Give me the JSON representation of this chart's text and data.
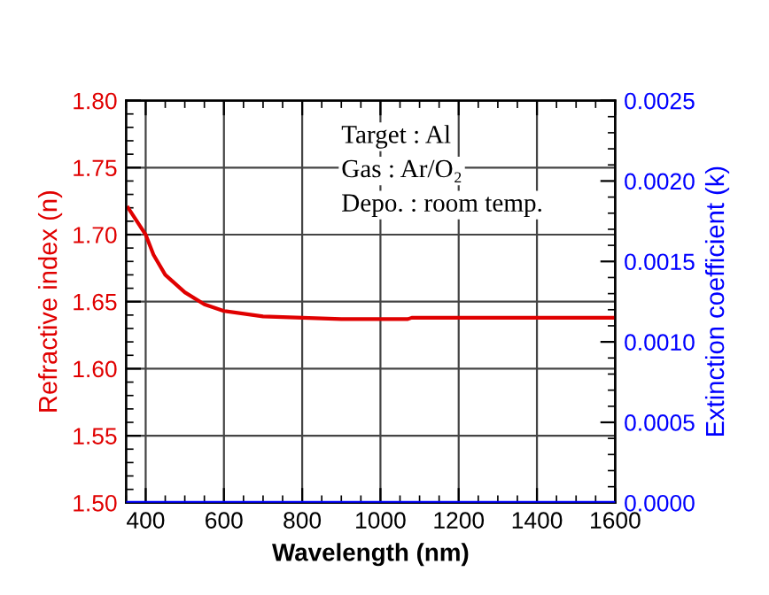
{
  "chart_data": {
    "type": "line",
    "xlabel": "Wavelength (nm)",
    "ylabel": "Refractive index (n)",
    "y2label": "Extinction coefficient (k)",
    "series": [
      {
        "color": "#e00000",
        "x": [
          355,
          400,
          420,
          450,
          500,
          550,
          600,
          700,
          800,
          900,
          1070,
          1080,
          1600
        ],
        "values": [
          1.72,
          1.7,
          1.685,
          1.67,
          1.657,
          1.648,
          1.643,
          1.639,
          1.638,
          1.637,
          1.637,
          1.638,
          1.638
        ]
      },
      {
        "color": "#0000ff",
        "axis": "y2",
        "x": [
          350,
          1600
        ],
        "values": [
          0,
          0
        ]
      }
    ],
    "xlim": [
      350,
      1600
    ],
    "xticks": [
      400,
      600,
      800,
      1000,
      1200,
      1400,
      1600
    ],
    "ylim": [
      1.5,
      1.8
    ],
    "yticks": [
      {
        "value": 1.5,
        "label": "1.50"
      },
      {
        "value": 1.55,
        "label": "1.55"
      },
      {
        "value": 1.6,
        "label": "1.60"
      },
      {
        "value": 1.65,
        "label": "1.65"
      },
      {
        "value": 1.7,
        "label": "1.70"
      },
      {
        "value": 1.75,
        "label": "1.75"
      },
      {
        "value": 1.8,
        "label": "1.80"
      }
    ],
    "y2lim": [
      0,
      0.0025
    ],
    "y2ticks": [
      {
        "value": 0,
        "label": "0.0000"
      },
      {
        "value": 0.0005,
        "label": "0.0005"
      },
      {
        "value": 0.001,
        "label": "0.0010"
      },
      {
        "value": 0.0015,
        "label": "0.0015"
      },
      {
        "value": 0.002,
        "label": "0.0020"
      },
      {
        "value": 0.0025,
        "label": "0.0025"
      }
    ],
    "grid": true,
    "marker": "none",
    "line_style": "solid",
    "annotations": [
      "Target : Al",
      "Gas : Ar/O₂",
      "Depo. : room temp."
    ]
  }
}
